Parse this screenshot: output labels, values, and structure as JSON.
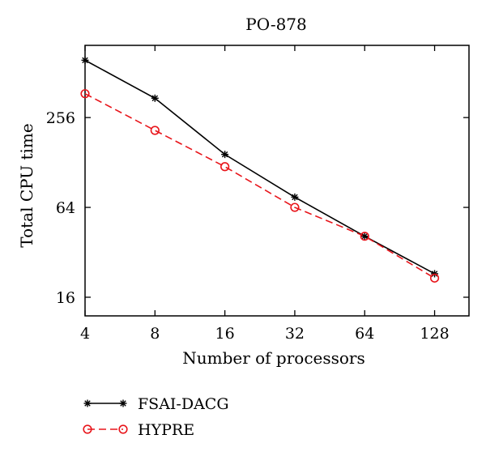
{
  "chart_data": {
    "type": "line",
    "title": "PO-878",
    "xlabel": "Number of processors",
    "ylabel": "Total CPU time",
    "x_scale": "log2",
    "y_scale": "log2",
    "x_ticks": [
      4,
      8,
      16,
      32,
      64,
      128
    ],
    "y_ticks": [
      16,
      64,
      256
    ],
    "xlim": [
      4,
      180
    ],
    "ylim": [
      12,
      780
    ],
    "grid": false,
    "legend_position": "bottom-left, below plot",
    "series": [
      {
        "name": "FSAI-DACG",
        "x": [
          4,
          8,
          16,
          32,
          64,
          128
        ],
        "y": [
          620,
          345,
          145,
          75,
          41,
          23
        ],
        "color": "#000000",
        "line_style": "solid",
        "marker": "asterisk"
      },
      {
        "name": "HYPRE",
        "x": [
          4,
          8,
          16,
          32,
          64,
          128
        ],
        "y": [
          370,
          210,
          120,
          64,
          41,
          21.5
        ],
        "color": "#e8151b",
        "line_style": "dashed",
        "marker": "open-circle"
      }
    ]
  }
}
